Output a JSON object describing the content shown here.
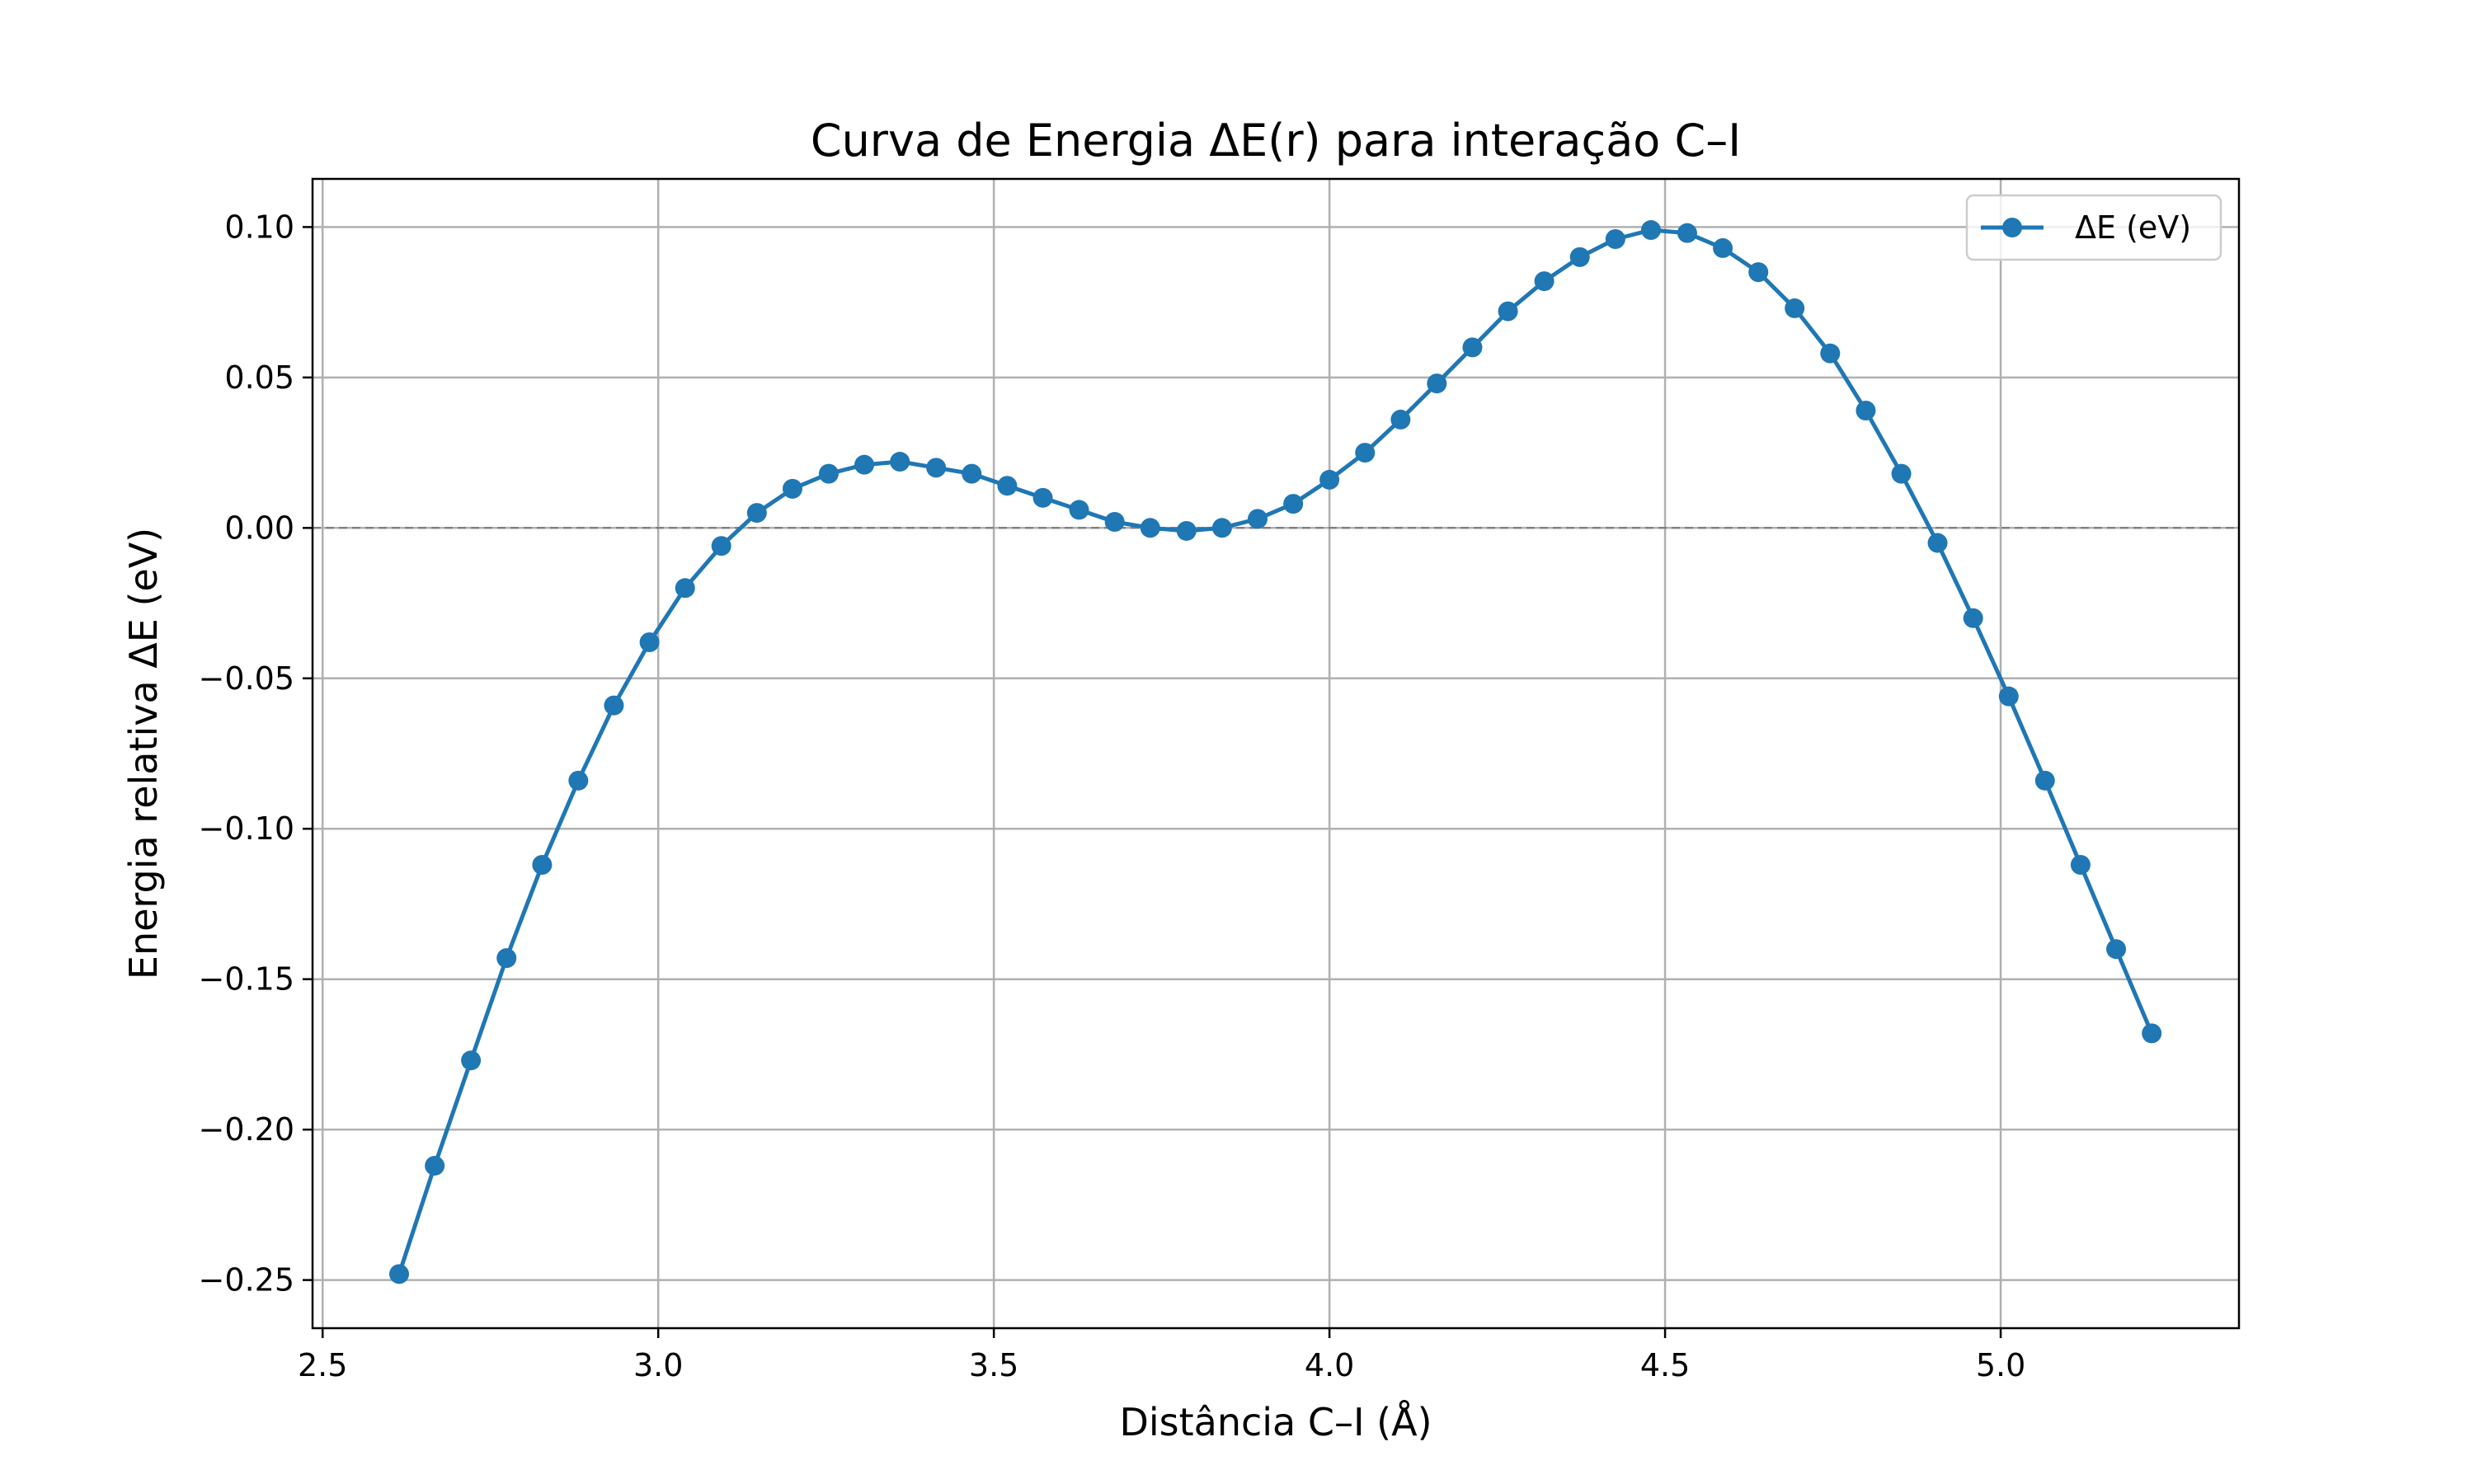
{
  "chart_data": {
    "type": "line",
    "title": "Curva de Energia ΔE(r) para interação C–I",
    "xlabel": "Distância C–I (Å)",
    "ylabel": "Energia relativa ΔE (eV)",
    "xlim": [
      2.485,
      5.355
    ],
    "ylim": [
      -0.266,
      0.116
    ],
    "xticks": [
      2.5,
      3.0,
      3.5,
      4.0,
      4.5,
      5.0
    ],
    "xtick_labels": [
      "2.5",
      "3.0",
      "3.5",
      "4.0",
      "4.5",
      "5.0"
    ],
    "yticks": [
      0.1,
      0.05,
      0.0,
      -0.05,
      -0.1,
      -0.15,
      -0.2,
      -0.25
    ],
    "ytick_labels": [
      "0.10",
      "0.05",
      "0.00",
      "−0.05",
      "−0.10",
      "−0.15",
      "−0.20",
      "−0.25"
    ],
    "grid": true,
    "reference_line_y": 0.0,
    "legend": {
      "position": "top-right",
      "entries": [
        "ΔE (eV)"
      ]
    },
    "series": [
      {
        "name": "ΔE (eV)",
        "color": "#1f77b4",
        "marker": "circle",
        "x": [
          2.614,
          2.667,
          2.721,
          2.774,
          2.827,
          2.881,
          2.934,
          2.987,
          3.04,
          3.094,
          3.147,
          3.2,
          3.254,
          3.307,
          3.36,
          3.414,
          3.467,
          3.52,
          3.573,
          3.627,
          3.68,
          3.733,
          3.787,
          3.84,
          3.893,
          3.946,
          4.0,
          4.053,
          4.106,
          4.16,
          4.213,
          4.266,
          4.32,
          4.373,
          4.426,
          4.479,
          4.533,
          4.586,
          4.639,
          4.693,
          4.746,
          4.799,
          4.852,
          4.906,
          4.959,
          5.012,
          5.066,
          5.119,
          5.172,
          5.225
        ],
        "y": [
          -0.248,
          -0.212,
          -0.177,
          -0.143,
          -0.112,
          -0.084,
          -0.059,
          -0.038,
          -0.02,
          -0.006,
          0.005,
          0.013,
          0.018,
          0.021,
          0.022,
          0.02,
          0.018,
          0.014,
          0.01,
          0.006,
          0.002,
          0.0,
          -0.001,
          0.0,
          0.003,
          0.008,
          0.016,
          0.025,
          0.036,
          0.048,
          0.06,
          0.072,
          0.082,
          0.09,
          0.096,
          0.099,
          0.098,
          0.093,
          0.085,
          0.073,
          0.058,
          0.039,
          0.018,
          -0.005,
          -0.03,
          -0.056,
          -0.084,
          -0.112,
          -0.14,
          -0.168
        ]
      }
    ]
  }
}
